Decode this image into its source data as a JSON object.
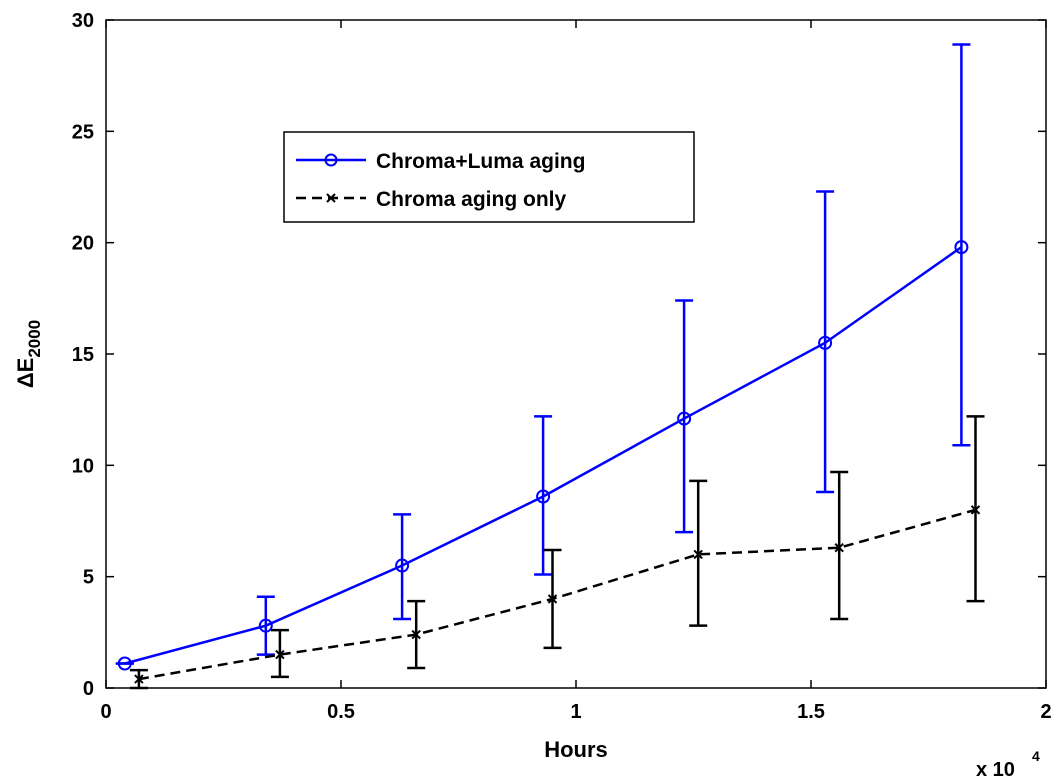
{
  "chart_data": {
    "type": "line",
    "xlabel": "Hours",
    "ylabel_main": "ΔE",
    "ylabel_sub": "2000",
    "x_multiplier": "x 10",
    "x_multiplier_exp": "4",
    "xlim": [
      0,
      20000
    ],
    "ylim": [
      0,
      30
    ],
    "x_ticks": [
      0,
      5000,
      10000,
      15000,
      20000
    ],
    "x_tick_labels": [
      "0",
      "0.5",
      "1",
      "1.5",
      "2"
    ],
    "y_ticks": [
      0,
      5,
      10,
      15,
      20,
      25,
      30
    ],
    "y_tick_labels": [
      "0",
      "5",
      "10",
      "15",
      "20",
      "25",
      "30"
    ],
    "grid": false,
    "legend_position": "upper-left",
    "series": [
      {
        "name": "Chroma+Luma aging",
        "color": "#0000ff",
        "line_style": "solid",
        "marker": "circle",
        "x": [
          400,
          3400,
          6300,
          9300,
          12300,
          15300,
          18200
        ],
        "y": [
          1.1,
          2.8,
          5.5,
          8.6,
          12.1,
          15.5,
          19.8
        ],
        "err_low": [
          1.1,
          1.5,
          3.1,
          5.1,
          7.0,
          8.8,
          10.9
        ],
        "err_high": [
          1.1,
          4.1,
          7.8,
          12.2,
          17.4,
          22.3,
          28.9
        ]
      },
      {
        "name": "Chroma aging only",
        "color": "#000000",
        "line_style": "dashed",
        "marker": "x",
        "x": [
          700,
          3700,
          6600,
          9500,
          12600,
          15600,
          18500
        ],
        "y": [
          0.4,
          1.5,
          2.4,
          4.0,
          6.0,
          6.3,
          8.0
        ],
        "err_low": [
          0.0,
          0.5,
          0.9,
          1.8,
          2.8,
          3.1,
          3.9
        ],
        "err_high": [
          0.8,
          2.6,
          3.9,
          6.2,
          9.3,
          9.7,
          12.2
        ]
      }
    ]
  }
}
